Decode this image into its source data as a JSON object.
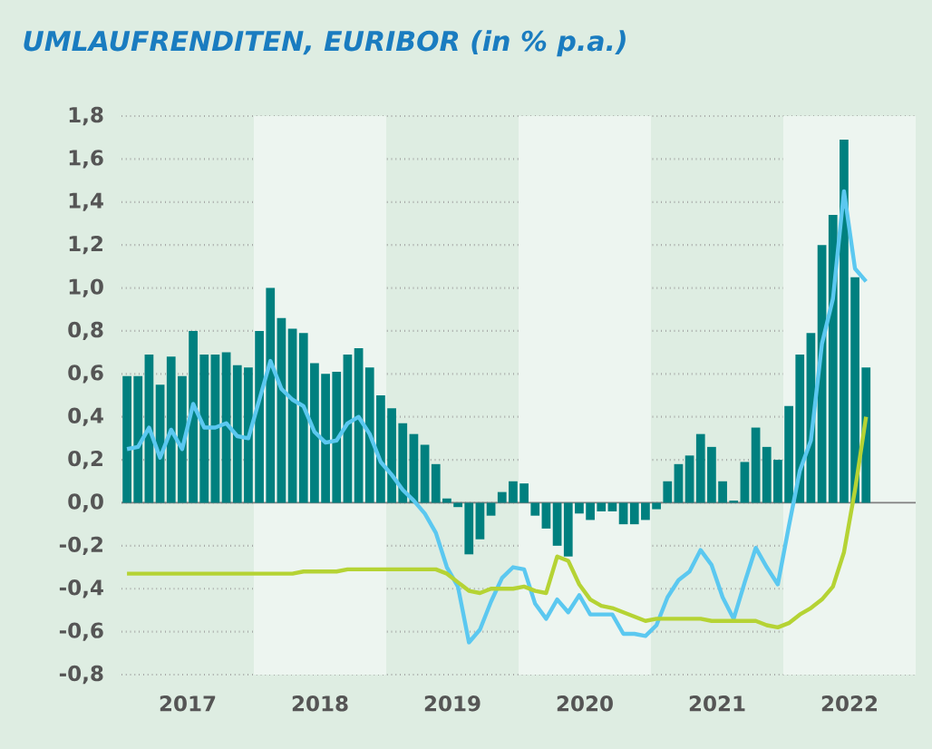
{
  "chart_data": {
    "type": "bar",
    "title": "UMLAUFRENDITEN, EURIBOR (in % p.a.)",
    "x": [
      "2017-01-16",
      "2017-02-16",
      "2017-03-16",
      "2017-04-16",
      "2017-05-16",
      "2017-06-16",
      "2017-07-16",
      "2017-08-16",
      "2017-09-16",
      "2017-10-16",
      "2017-11-16",
      "2017-12-16",
      "2018-01-16",
      "2018-02-16",
      "2018-03-16",
      "2018-04-16",
      "2018-05-16",
      "2018-06-16",
      "2018-07-16",
      "2018-08-16",
      "2018-09-16",
      "2018-10-16",
      "2018-11-16",
      "2018-12-16",
      "2019-01-16",
      "2019-02-16",
      "2019-03-16",
      "2019-04-16",
      "2019-05-16",
      "2019-06-16",
      "2019-07-16",
      "2019-08-16",
      "2019-09-16",
      "2019-10-16",
      "2019-11-16",
      "2019-12-16",
      "2020-01-16",
      "2020-02-16",
      "2020-03-16",
      "2020-04-16",
      "2020-05-16",
      "2020-06-16",
      "2020-07-16",
      "2020-08-16",
      "2020-09-16",
      "2020-10-16",
      "2020-11-16",
      "2020-12-16",
      "2021-01-16",
      "2021-02-16",
      "2021-03-16",
      "2021-04-16",
      "2021-05-16",
      "2021-06-16",
      "2021-07-16",
      "2021-08-16",
      "2021-09-16",
      "2021-10-16",
      "2021-11-16",
      "2021-12-16",
      "2022-01-16",
      "2022-02-16",
      "2022-03-16",
      "2022-04-16",
      "2022-05-16",
      "2022-06-16",
      "2022-07-16",
      "2022-08-16"
    ],
    "series": [
      {
        "color": "#00807f",
        "values": [
          0.59,
          0.59,
          0.69,
          0.55,
          0.68,
          0.59,
          0.8,
          0.69,
          0.69,
          0.7,
          0.64,
          0.63,
          0.8,
          1.0,
          0.86,
          0.81,
          0.79,
          0.65,
          0.6,
          0.61,
          0.69,
          0.72,
          0.63,
          0.5,
          0.44,
          0.37,
          0.32,
          0.27,
          0.18,
          0.02,
          -0.02,
          -0.24,
          -0.17,
          -0.06,
          0.05,
          0.1,
          0.09,
          -0.06,
          -0.12,
          -0.2,
          -0.25,
          -0.05,
          -0.08,
          -0.04,
          -0.04,
          -0.1,
          -0.1,
          -0.08,
          -0.03,
          0.1,
          0.18,
          0.22,
          0.32,
          0.26,
          0.1,
          0.01,
          0.19,
          0.35,
          0.26,
          0.2,
          0.45,
          0.69,
          0.79,
          1.2,
          1.34,
          1.69,
          1.05,
          0.63
        ]
      },
      {
        "type": "line",
        "color": "#5bc8f0",
        "values": [
          0.25,
          0.26,
          0.35,
          0.21,
          0.34,
          0.25,
          0.46,
          0.35,
          0.35,
          0.37,
          0.31,
          0.3,
          0.48,
          0.66,
          0.53,
          0.48,
          0.45,
          0.33,
          0.28,
          0.29,
          0.37,
          0.4,
          0.32,
          0.19,
          0.13,
          0.06,
          0.01,
          -0.05,
          -0.14,
          -0.3,
          -0.39,
          -0.65,
          -0.59,
          -0.46,
          -0.35,
          -0.3,
          -0.31,
          -0.47,
          -0.54,
          -0.45,
          -0.51,
          -0.43,
          -0.52,
          -0.52,
          -0.52,
          -0.61,
          -0.61,
          -0.62,
          -0.57,
          -0.44,
          -0.36,
          -0.32,
          -0.22,
          -0.29,
          -0.44,
          -0.54,
          -0.37,
          -0.21,
          -0.3,
          -0.38,
          -0.11,
          0.15,
          0.29,
          0.74,
          0.95,
          1.45,
          1.09,
          1.03
        ]
      },
      {
        "type": "line",
        "color": "#b5d334",
        "values": [
          -0.33,
          -0.33,
          -0.33,
          -0.33,
          -0.33,
          -0.33,
          -0.33,
          -0.33,
          -0.33,
          -0.33,
          -0.33,
          -0.33,
          -0.33,
          -0.33,
          -0.33,
          -0.33,
          -0.32,
          -0.32,
          -0.32,
          -0.32,
          -0.31,
          -0.31,
          -0.31,
          -0.31,
          -0.31,
          -0.31,
          -0.31,
          -0.31,
          -0.31,
          -0.33,
          -0.37,
          -0.41,
          -0.42,
          -0.4,
          -0.4,
          -0.4,
          -0.39,
          -0.41,
          -0.42,
          -0.25,
          -0.27,
          -0.38,
          -0.45,
          -0.48,
          -0.49,
          -0.51,
          -0.53,
          -0.55,
          -0.54,
          -0.54,
          -0.54,
          -0.54,
          -0.54,
          -0.55,
          -0.55,
          -0.55,
          -0.55,
          -0.55,
          -0.57,
          -0.58,
          -0.56,
          -0.52,
          -0.49,
          -0.45,
          -0.39,
          -0.23,
          0.06,
          0.4
        ]
      }
    ],
    "xlim": [
      "2017-01-01",
      "2023-01-01"
    ],
    "xticks": [
      {
        "value": "2017-07-01",
        "label": "2017"
      },
      {
        "value": "2018-07-01",
        "label": "2018"
      },
      {
        "value": "2019-07-01",
        "label": "2019"
      },
      {
        "value": "2020-07-01",
        "label": "2020"
      },
      {
        "value": "2021-07-01",
        "label": "2021"
      },
      {
        "value": "2022-07-01",
        "label": "2022"
      }
    ],
    "ylim": [
      -0.8,
      1.8
    ],
    "yticks": [
      {
        "value": -0.8,
        "label": "-0,8"
      },
      {
        "value": -0.6,
        "label": "-0,6"
      },
      {
        "value": -0.4,
        "label": "-0,4"
      },
      {
        "value": -0.2,
        "label": "-0,2"
      },
      {
        "value": 0,
        "label": "0,0"
      },
      {
        "value": 0.2,
        "label": "0,2"
      },
      {
        "value": 0.4,
        "label": "0,4"
      },
      {
        "value": 0.6,
        "label": "0,6"
      },
      {
        "value": 0.8,
        "label": "0,8"
      },
      {
        "value": 1.0,
        "label": "1,0"
      },
      {
        "value": 1.2,
        "label": "1,2"
      },
      {
        "value": 1.4,
        "label": "1,4"
      },
      {
        "value": 1.6,
        "label": "1,6"
      },
      {
        "value": 1.8,
        "label": "1,8"
      }
    ],
    "grid": "y",
    "bands": [
      {
        "axis": "x",
        "from": "2018-01-01",
        "to": "2019-01-01",
        "color": "#edf5f0"
      },
      {
        "axis": "x",
        "from": "2020-01-01",
        "to": "2021-01-01",
        "color": "#edf5f0"
      },
      {
        "axis": "x",
        "from": "2022-01-01",
        "to": "2023-01-01",
        "color": "#edf5f0"
      }
    ]
  }
}
